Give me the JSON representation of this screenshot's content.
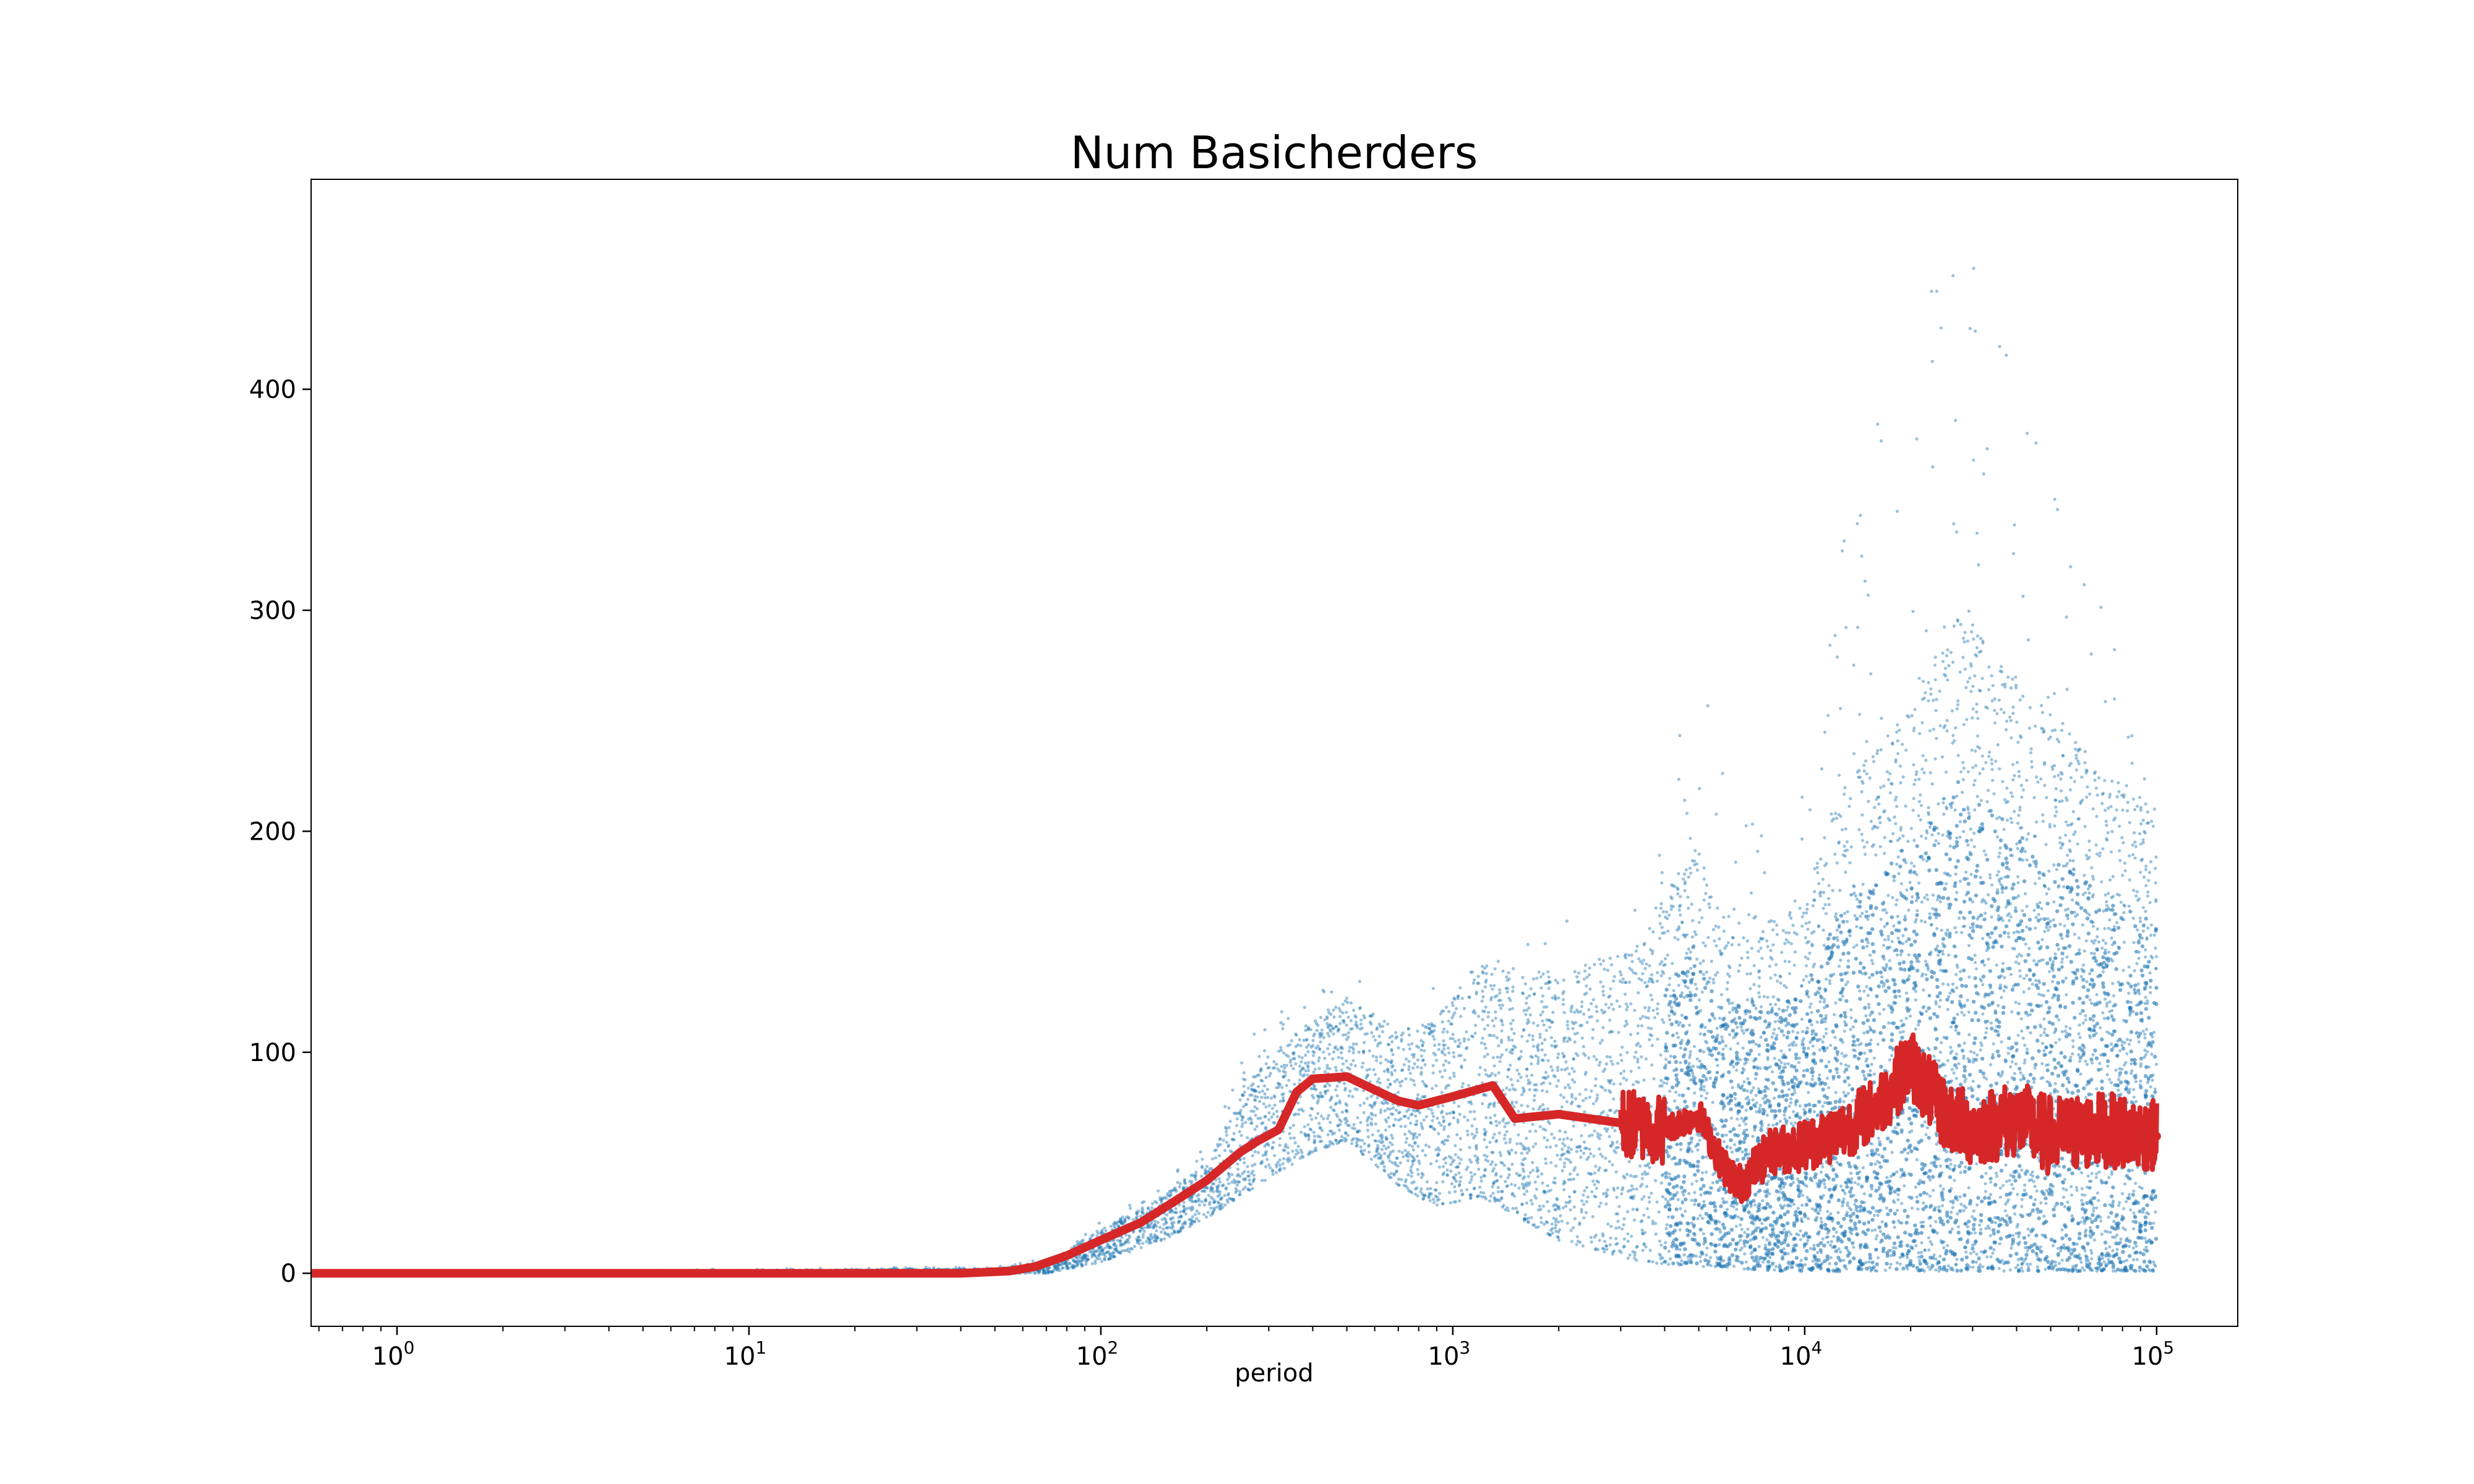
{
  "chart_data": {
    "type": "scatter",
    "title": "Num Basicherders",
    "xlabel": "period",
    "ylabel": "",
    "x_scale": "log",
    "xlim": [
      0.57,
      170000
    ],
    "ylim": [
      -24,
      495
    ],
    "grid": false,
    "x_ticks": [
      {
        "value": 1,
        "base": "10",
        "exp": "0"
      },
      {
        "value": 10,
        "base": "10",
        "exp": "1"
      },
      {
        "value": 100,
        "base": "10",
        "exp": "2"
      },
      {
        "value": 1000,
        "base": "10",
        "exp": "3"
      },
      {
        "value": 10000,
        "base": "10",
        "exp": "4"
      },
      {
        "value": 100000,
        "base": "10",
        "exp": "5"
      }
    ],
    "y_ticks": [
      {
        "value": 0,
        "label": "0"
      },
      {
        "value": 100,
        "label": "100"
      },
      {
        "value": 200,
        "label": "200"
      },
      {
        "value": 300,
        "label": "300"
      },
      {
        "value": 400,
        "label": "400"
      }
    ],
    "series": [
      {
        "role": "individual runs",
        "color": "#1f77b4",
        "style": "scatter",
        "bands": [
          {
            "x": 0.57,
            "lo": 0,
            "hi": 0,
            "peak": 0
          },
          {
            "x": 50,
            "lo": 0,
            "hi": 2,
            "peak": 3
          },
          {
            "x": 70,
            "lo": 0,
            "hi": 5,
            "peak": 8
          },
          {
            "x": 100,
            "lo": 5,
            "hi": 20,
            "peak": 25
          },
          {
            "x": 150,
            "lo": 15,
            "hi": 35,
            "peak": 40
          },
          {
            "x": 200,
            "lo": 25,
            "hi": 50,
            "peak": 60
          },
          {
            "x": 280,
            "lo": 40,
            "hi": 95,
            "peak": 115
          },
          {
            "x": 400,
            "lo": 55,
            "hi": 115,
            "peak": 125
          },
          {
            "x": 500,
            "lo": 60,
            "hi": 125,
            "peak": 140
          },
          {
            "x": 700,
            "lo": 40,
            "hi": 110,
            "peak": 120
          },
          {
            "x": 900,
            "lo": 30,
            "hi": 115,
            "peak": 130
          },
          {
            "x": 1200,
            "lo": 35,
            "hi": 140,
            "peak": 157
          },
          {
            "x": 2000,
            "lo": 15,
            "hi": 135,
            "peak": 160
          },
          {
            "x": 3500,
            "lo": 5,
            "hi": 150,
            "peak": 170
          },
          {
            "x": 4800,
            "lo": 3,
            "hi": 200,
            "peak": 293
          },
          {
            "x": 5500,
            "lo": 3,
            "hi": 170,
            "peak": 250
          },
          {
            "x": 8000,
            "lo": 1,
            "hi": 160,
            "peak": 195
          },
          {
            "x": 10000,
            "lo": 1,
            "hi": 170,
            "peak": 245
          },
          {
            "x": 12500,
            "lo": 1,
            "hi": 220,
            "peak": 325
          },
          {
            "x": 20000,
            "lo": 1,
            "hi": 260,
            "peak": 437
          },
          {
            "x": 28000,
            "lo": 1,
            "hi": 300,
            "peak": 472
          },
          {
            "x": 45000,
            "lo": 1,
            "hi": 260,
            "peak": 397
          },
          {
            "x": 70000,
            "lo": 1,
            "hi": 230,
            "peak": 305
          },
          {
            "x": 100000,
            "lo": 1,
            "hi": 210,
            "peak": 220
          }
        ]
      },
      {
        "role": "mean",
        "color": "#d62728",
        "style": "line",
        "points": [
          [
            0.57,
            0
          ],
          [
            10,
            0
          ],
          [
            40,
            0
          ],
          [
            55,
            1
          ],
          [
            65,
            3
          ],
          [
            80,
            8
          ],
          [
            100,
            15
          ],
          [
            130,
            23
          ],
          [
            160,
            32
          ],
          [
            200,
            42
          ],
          [
            250,
            55
          ],
          [
            280,
            60
          ],
          [
            320,
            65
          ],
          [
            360,
            82
          ],
          [
            400,
            88
          ],
          [
            500,
            89
          ],
          [
            600,
            83
          ],
          [
            700,
            78
          ],
          [
            800,
            76
          ],
          [
            1000,
            80
          ],
          [
            1300,
            85
          ],
          [
            1500,
            70
          ],
          [
            2000,
            72
          ],
          [
            3000,
            68
          ],
          [
            4000,
            65
          ],
          [
            5000,
            72
          ],
          [
            5800,
            50
          ],
          [
            6500,
            40
          ],
          [
            8000,
            55
          ],
          [
            10000,
            58
          ],
          [
            13000,
            65
          ],
          [
            16000,
            75
          ],
          [
            20000,
            95
          ],
          [
            25000,
            72
          ],
          [
            30000,
            65
          ],
          [
            40000,
            70
          ],
          [
            50000,
            62
          ],
          [
            70000,
            65
          ],
          [
            100000,
            62
          ]
        ],
        "jitter": [
          {
            "x": 4000,
            "amp": 6
          },
          {
            "x": 10000,
            "amp": 12
          },
          {
            "x": 20000,
            "amp": 16
          },
          {
            "x": 50000,
            "amp": 18
          },
          {
            "x": 100000,
            "amp": 16
          }
        ]
      }
    ]
  }
}
